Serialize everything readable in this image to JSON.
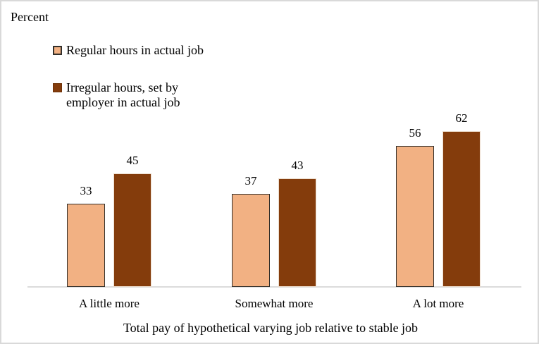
{
  "frame": {
    "background_color": "#FFFFFF",
    "border_color": "#D9D9D9"
  },
  "chart_data": {
    "type": "bar",
    "title": "",
    "y_axis_label": "Percent",
    "x_axis_label": "Total pay of hypothetical varying job relative to stable job",
    "categories": [
      "A little more",
      "Somewhat more",
      "A lot more"
    ],
    "series": [
      {
        "name": "Regular hours in actual job",
        "color": "#F2B183",
        "values": [
          33,
          37,
          56
        ]
      },
      {
        "name": "Irregular hours, set by employer in actual job",
        "color": "#843C0C",
        "values": [
          45,
          43,
          62
        ]
      }
    ],
    "ylim": [
      0,
      70
    ],
    "grid": false,
    "legend_position": "top-left",
    "data_labels": true,
    "axis_line_color": "#DCDCDC"
  },
  "legend": {
    "items": [
      {
        "lines": [
          "Regular hours in actual job"
        ],
        "color": "#F2B183"
      },
      {
        "lines": [
          "Irregular hours, set by",
          "employer in actual job"
        ],
        "color": "#843C0C"
      }
    ]
  }
}
